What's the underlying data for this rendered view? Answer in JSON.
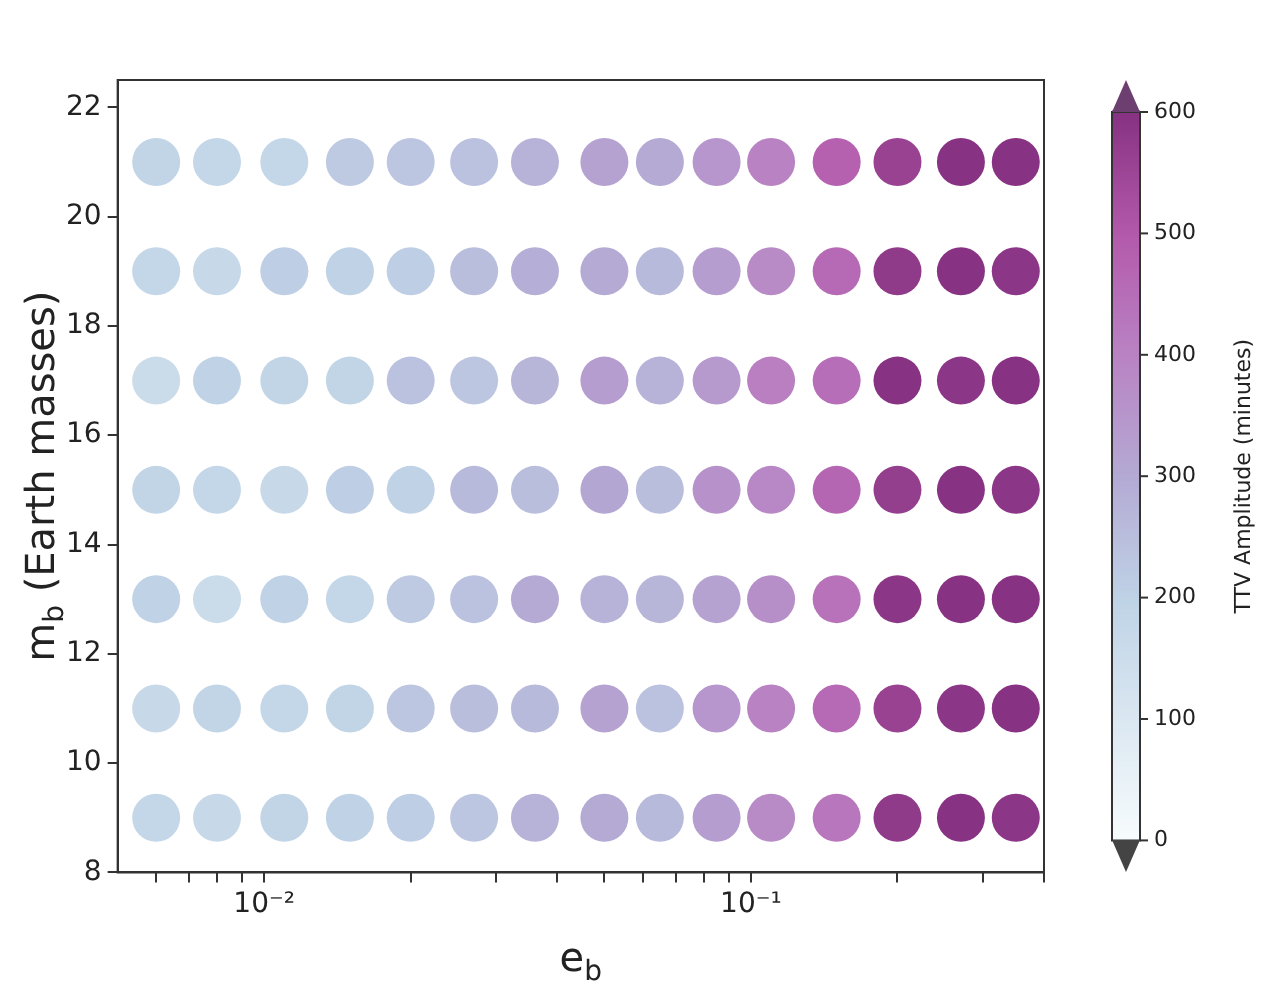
{
  "chart_data": {
    "type": "scatter",
    "xlabel": "e$_{b}$",
    "ylabel": "m$_{b}$ (Earth masses)",
    "clabel": "TTV Amplitude (minutes)",
    "log": "x",
    "marker": "circle",
    "xlim": [
      0.005,
      0.4
    ],
    "ylim": [
      8,
      22.5
    ],
    "xticks": [
      {
        "value": 0.006,
        "label": null
      },
      {
        "value": 0.007,
        "label": null
      },
      {
        "value": 0.008,
        "label": null
      },
      {
        "value": 0.009,
        "label": null
      },
      {
        "value": 0.01,
        "label": "10⁻²"
      },
      {
        "value": 0.02,
        "label": null
      },
      {
        "value": 0.03,
        "label": null
      },
      {
        "value": 0.04,
        "label": null
      },
      {
        "value": 0.05,
        "label": null
      },
      {
        "value": 0.06,
        "label": null
      },
      {
        "value": 0.07,
        "label": null
      },
      {
        "value": 0.08,
        "label": null
      },
      {
        "value": 0.09,
        "label": null
      },
      {
        "value": 0.1,
        "label": "10⁻¹"
      },
      {
        "value": 0.2,
        "label": null
      },
      {
        "value": 0.3,
        "label": null
      },
      {
        "value": 0.4,
        "label": null
      }
    ],
    "yticks": [
      8,
      10,
      12,
      14,
      16,
      18,
      20,
      22
    ],
    "clim": [
      0,
      600
    ],
    "cticks": [
      0,
      100,
      200,
      300,
      400,
      500,
      600
    ],
    "x": [
      0.006,
      0.008,
      0.011,
      0.015,
      0.02,
      0.027,
      0.036,
      0.05,
      0.065,
      0.085,
      0.11,
      0.15,
      0.2,
      0.27,
      0.35,
      0.006,
      0.008,
      0.011,
      0.015,
      0.02,
      0.027,
      0.036,
      0.05,
      0.065,
      0.085,
      0.11,
      0.15,
      0.2,
      0.27,
      0.35,
      0.006,
      0.008,
      0.011,
      0.015,
      0.02,
      0.027,
      0.036,
      0.05,
      0.065,
      0.085,
      0.11,
      0.15,
      0.2,
      0.27,
      0.35,
      0.006,
      0.008,
      0.011,
      0.015,
      0.02,
      0.027,
      0.036,
      0.05,
      0.065,
      0.085,
      0.11,
      0.15,
      0.2,
      0.27,
      0.35,
      0.006,
      0.008,
      0.011,
      0.015,
      0.02,
      0.027,
      0.036,
      0.05,
      0.065,
      0.085,
      0.11,
      0.15,
      0.2,
      0.27,
      0.35,
      0.006,
      0.008,
      0.011,
      0.015,
      0.02,
      0.027,
      0.036,
      0.05,
      0.065,
      0.085,
      0.11,
      0.15,
      0.2,
      0.27,
      0.35,
      0.006,
      0.008,
      0.011,
      0.015,
      0.02,
      0.027,
      0.036,
      0.05,
      0.065,
      0.085,
      0.11,
      0.15,
      0.2,
      0.27,
      0.35
    ],
    "values": [
      9,
      9,
      9,
      9,
      9,
      9,
      9,
      9,
      9,
      9,
      9,
      9,
      9,
      9,
      9,
      11,
      11,
      11,
      11,
      11,
      11,
      11,
      11,
      11,
      11,
      11,
      11,
      11,
      11,
      11,
      13,
      13,
      13,
      13,
      13,
      13,
      13,
      13,
      13,
      13,
      13,
      13,
      13,
      13,
      13,
      15,
      15,
      15,
      15,
      15,
      15,
      15,
      15,
      15,
      15,
      15,
      15,
      15,
      15,
      15,
      17,
      17,
      17,
      17,
      17,
      17,
      17,
      17,
      17,
      17,
      17,
      17,
      17,
      17,
      17,
      19,
      19,
      19,
      19,
      19,
      19,
      19,
      19,
      19,
      19,
      19,
      19,
      19,
      19,
      19,
      21,
      21,
      21,
      21,
      21,
      21,
      21,
      21,
      21,
      21,
      21,
      21,
      21,
      21,
      21
    ],
    "cvalues": [
      180,
      170,
      190,
      200,
      210,
      230,
      280,
      300,
      260,
      330,
      380,
      430,
      580,
      600,
      590,
      170,
      190,
      180,
      190,
      230,
      250,
      260,
      320,
      240,
      350,
      400,
      460,
      560,
      590,
      600,
      200,
      160,
      200,
      180,
      220,
      240,
      300,
      280,
      270,
      320,
      370,
      440,
      590,
      600,
      600,
      190,
      180,
      170,
      210,
      200,
      260,
      250,
      310,
      250,
      360,
      390,
      470,
      570,
      600,
      590,
      160,
      200,
      190,
      190,
      240,
      230,
      270,
      330,
      280,
      340,
      410,
      450,
      600,
      590,
      600,
      180,
      170,
      210,
      200,
      210,
      250,
      290,
      300,
      260,
      330,
      380,
      460,
      580,
      600,
      590,
      190,
      180,
      180,
      220,
      230,
      240,
      280,
      320,
      300,
      350,
      400,
      480,
      560,
      600,
      600
    ]
  }
}
